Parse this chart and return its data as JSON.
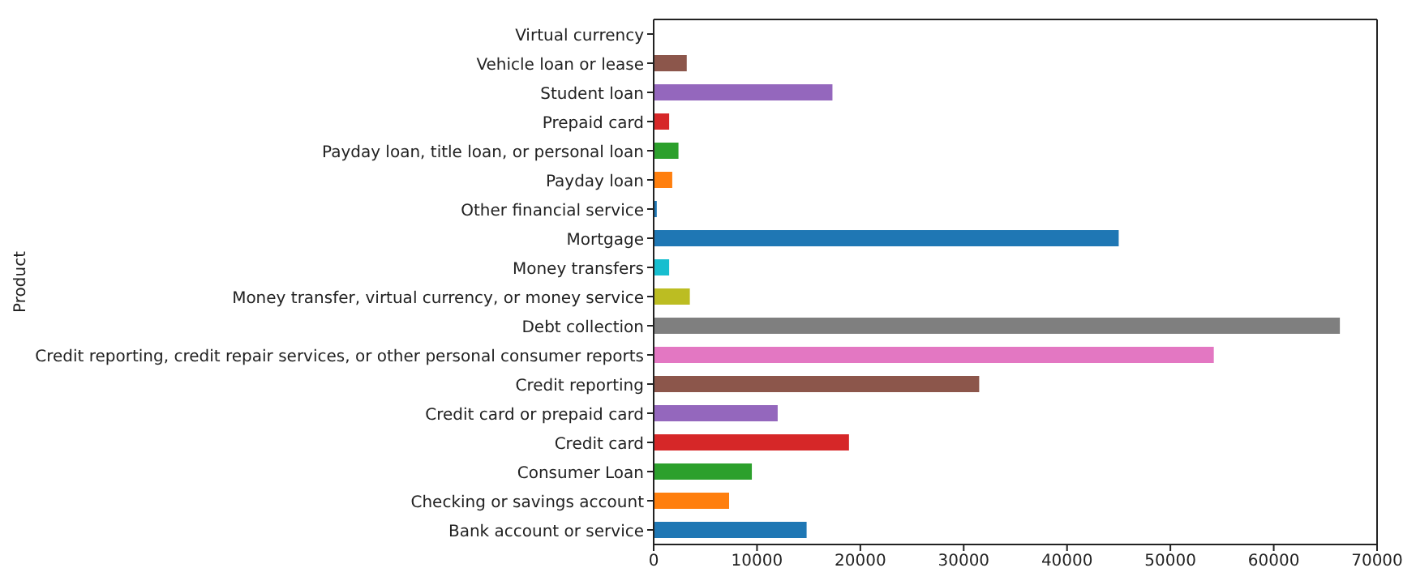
{
  "chart_data": {
    "type": "bar",
    "orientation": "horizontal",
    "ylabel": "Product",
    "categories": [
      "Virtual currency",
      "Vehicle loan or lease",
      "Student loan",
      "Prepaid card",
      "Payday loan, title loan, or personal loan",
      "Payday loan",
      "Other financial service",
      "Mortgage",
      "Money transfers",
      "Money transfer, virtual currency, or money service",
      "Debt collection",
      "Credit reporting, credit repair services, or other personal consumer reports",
      "Credit reporting",
      "Credit card or prepaid card",
      "Credit card",
      "Consumer Loan",
      "Checking or savings account",
      "Bank account or service"
    ],
    "values": [
      0,
      3200,
      17300,
      1500,
      2400,
      1800,
      300,
      45000,
      1500,
      3500,
      66400,
      54200,
      31500,
      12000,
      18900,
      9500,
      7300,
      14800
    ],
    "colors": [
      "#e377c2",
      "#8c564b",
      "#9467bd",
      "#d62728",
      "#2ca02c",
      "#ff7f0e",
      "#1f77b4",
      "#1f77b4",
      "#17becf",
      "#bcbd22",
      "#7f7f7f",
      "#e377c2",
      "#8c564b",
      "#9467bd",
      "#d62728",
      "#2ca02c",
      "#ff7f0e",
      "#1f77b4"
    ],
    "xlim": [
      0,
      70000
    ],
    "xticks": [
      0,
      10000,
      20000,
      30000,
      40000,
      50000,
      60000,
      70000
    ],
    "grid": false,
    "legend": false
  }
}
